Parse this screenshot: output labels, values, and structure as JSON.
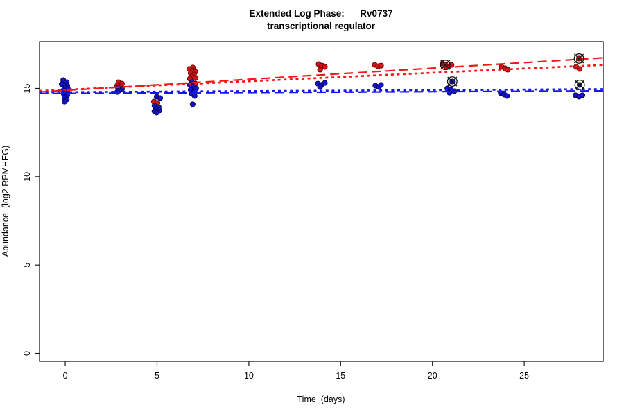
{
  "title": {
    "line1": "Extended Log Phase:      Rv0737",
    "line2": "transcriptional regulator"
  },
  "axes": {
    "x_label": "Time  (days)",
    "y_label": "Abundance  (log2 RPMHEG)"
  },
  "chart_data": {
    "type": "scatter",
    "title": "Extended Log Phase: Rv0737 transcriptional regulator",
    "xlabel": "Time (days)",
    "ylabel": "Abundance (log2 RPMHEG)",
    "xlim": [
      -1.4,
      29.3
    ],
    "ylim": [
      -0.45,
      17.65
    ],
    "x_ticks": [
      0,
      5,
      10,
      15,
      20,
      25
    ],
    "y_ticks": [
      0,
      5,
      10,
      15
    ],
    "grid": false,
    "legend": "none",
    "axis_color": "#1a1a1a",
    "series": [
      {
        "name": "red-condition-points",
        "color": "#d21414",
        "edge": "#550000",
        "points": [
          [
            2.9,
            15.35
          ],
          [
            3.09,
            15.27
          ],
          [
            2.83,
            15.16
          ],
          [
            3.02,
            15.08
          ],
          [
            4.83,
            14.25
          ],
          [
            5.02,
            14.18
          ],
          [
            6.95,
            16.18
          ],
          [
            6.75,
            16.1
          ],
          [
            6.94,
            16.02
          ],
          [
            7.09,
            15.94
          ],
          [
            6.83,
            15.86
          ],
          [
            7.01,
            15.78
          ],
          [
            6.9,
            15.67
          ],
          [
            7.09,
            15.59
          ],
          [
            6.79,
            15.55
          ],
          [
            13.8,
            16.37
          ],
          [
            13.99,
            16.29
          ],
          [
            14.14,
            16.22
          ],
          [
            13.88,
            16.06
          ],
          [
            16.86,
            16.33
          ],
          [
            17.04,
            16.25
          ],
          [
            17.2,
            16.29
          ],
          [
            20.55,
            16.41
          ],
          [
            20.89,
            16.25
          ],
          [
            21.04,
            16.33
          ],
          [
            20.78,
            16.2
          ],
          [
            23.76,
            16.22
          ],
          [
            23.95,
            16.14
          ],
          [
            24.1,
            16.06
          ],
          [
            27.83,
            16.22
          ],
          [
            28.02,
            16.1
          ]
        ]
      },
      {
        "name": "blue-condition-points",
        "color": "#1414c8",
        "edge": "#000050",
        "points": [
          [
            -0.11,
            15.47
          ],
          [
            0.08,
            15.35
          ],
          [
            -0.19,
            15.24
          ],
          [
            0.11,
            15.16
          ],
          [
            -0.04,
            15.04
          ],
          [
            0.15,
            14.96
          ],
          [
            -0.11,
            14.88
          ],
          [
            0.08,
            14.8
          ],
          [
            -0.08,
            14.69
          ],
          [
            0.11,
            14.61
          ],
          [
            -0.04,
            14.49
          ],
          [
            0.08,
            14.37
          ],
          [
            -0.04,
            14.25
          ],
          [
            2.87,
            15.04
          ],
          [
            3.09,
            14.96
          ],
          [
            2.94,
            14.88
          ],
          [
            2.83,
            14.8
          ],
          [
            4.98,
            14.53
          ],
          [
            5.17,
            14.45
          ],
          [
            4.86,
            14.02
          ],
          [
            5.09,
            13.94
          ],
          [
            4.94,
            13.82
          ],
          [
            5.13,
            13.75
          ],
          [
            4.86,
            13.71
          ],
          [
            4.98,
            13.63
          ],
          [
            6.9,
            15.35
          ],
          [
            7.09,
            15.27
          ],
          [
            6.79,
            15.2
          ],
          [
            6.98,
            15.12
          ],
          [
            7.13,
            15.0
          ],
          [
            6.83,
            14.92
          ],
          [
            7.01,
            14.8
          ],
          [
            6.9,
            14.69
          ],
          [
            7.05,
            14.57
          ],
          [
            6.94,
            14.1
          ],
          [
            13.76,
            15.27
          ],
          [
            13.95,
            15.2
          ],
          [
            14.14,
            15.31
          ],
          [
            13.88,
            15.08
          ],
          [
            16.89,
            15.16
          ],
          [
            17.08,
            15.08
          ],
          [
            17.2,
            15.2
          ],
          [
            20.81,
            15.0
          ],
          [
            21.0,
            14.92
          ],
          [
            21.19,
            14.84
          ],
          [
            20.93,
            14.76
          ],
          [
            23.72,
            14.73
          ],
          [
            23.91,
            14.65
          ],
          [
            24.06,
            14.57
          ],
          [
            27.79,
            14.61
          ],
          [
            27.98,
            14.53
          ],
          [
            28.17,
            14.61
          ]
        ]
      }
    ],
    "outlier_points": [
      {
        "series": 0,
        "x": 20.7,
        "y": 16.33
      },
      {
        "series": 0,
        "x": 27.98,
        "y": 16.69
      },
      {
        "series": 1,
        "x": 21.08,
        "y": 15.39
      },
      {
        "series": 1,
        "x": 28.02,
        "y": 15.2
      }
    ],
    "trend_lines": [
      {
        "name": "red-dotted-fit",
        "color": "#f51616",
        "dash": "4,4.6",
        "width": 2.7,
        "x1": -1.4,
        "y1": 14.86,
        "x2": 29.3,
        "y2": 16.33
      },
      {
        "name": "red-longdash-fit",
        "color": "#f51616",
        "dash": "13,7",
        "width": 2.2,
        "x1": -1.4,
        "y1": 14.8,
        "x2": 29.3,
        "y2": 16.73
      },
      {
        "name": "blue-dotted-fit",
        "color": "#1616f5",
        "dash": "4,4.6",
        "width": 2.7,
        "x1": -1.4,
        "y1": 14.78,
        "x2": 29.3,
        "y2": 14.96
      },
      {
        "name": "blue-longdash-fit",
        "color": "#1616f5",
        "dash": "13,7",
        "width": 2.2,
        "x1": -1.4,
        "y1": 14.71,
        "x2": 29.3,
        "y2": 14.86
      }
    ]
  }
}
